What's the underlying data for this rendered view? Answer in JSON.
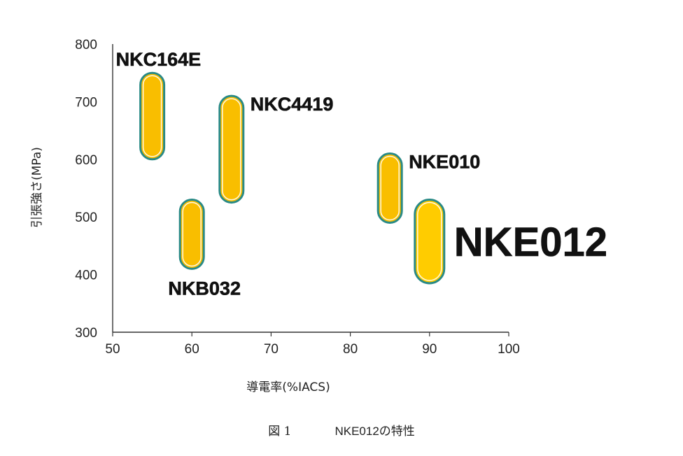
{
  "chart_data": {
    "type": "range",
    "xlabel": "導電率(%IACS)",
    "ylabel": "引張強さ(MPa)",
    "xlim": [
      50,
      100
    ],
    "ylim": [
      300,
      800
    ],
    "xticks": [
      50,
      60,
      70,
      80,
      90,
      100
    ],
    "yticks": [
      300,
      400,
      500,
      600,
      700,
      800
    ],
    "grid": false,
    "fill_color": "#f9be00",
    "highlight_fill_color": "#ffcc00",
    "outline_color": "#2a8a86",
    "series": [
      {
        "name": "NKC164E",
        "x": 55,
        "y_min": 600,
        "y_max": 750,
        "label_pos": "top-left"
      },
      {
        "name": "NKB032",
        "x": 60,
        "y_min": 410,
        "y_max": 530,
        "label_pos": "bottom"
      },
      {
        "name": "NKC4419",
        "x": 65,
        "y_min": 525,
        "y_max": 710,
        "label_pos": "right"
      },
      {
        "name": "NKE010",
        "x": 85,
        "y_min": 490,
        "y_max": 610,
        "label_pos": "right"
      },
      {
        "name": "NKE012",
        "x": 90,
        "y_min": 385,
        "y_max": 530,
        "label_pos": "right",
        "highlight": true
      }
    ]
  },
  "caption": {
    "figure": "図 1",
    "title_name": "NKE012",
    "title_suffix": "の特性"
  }
}
